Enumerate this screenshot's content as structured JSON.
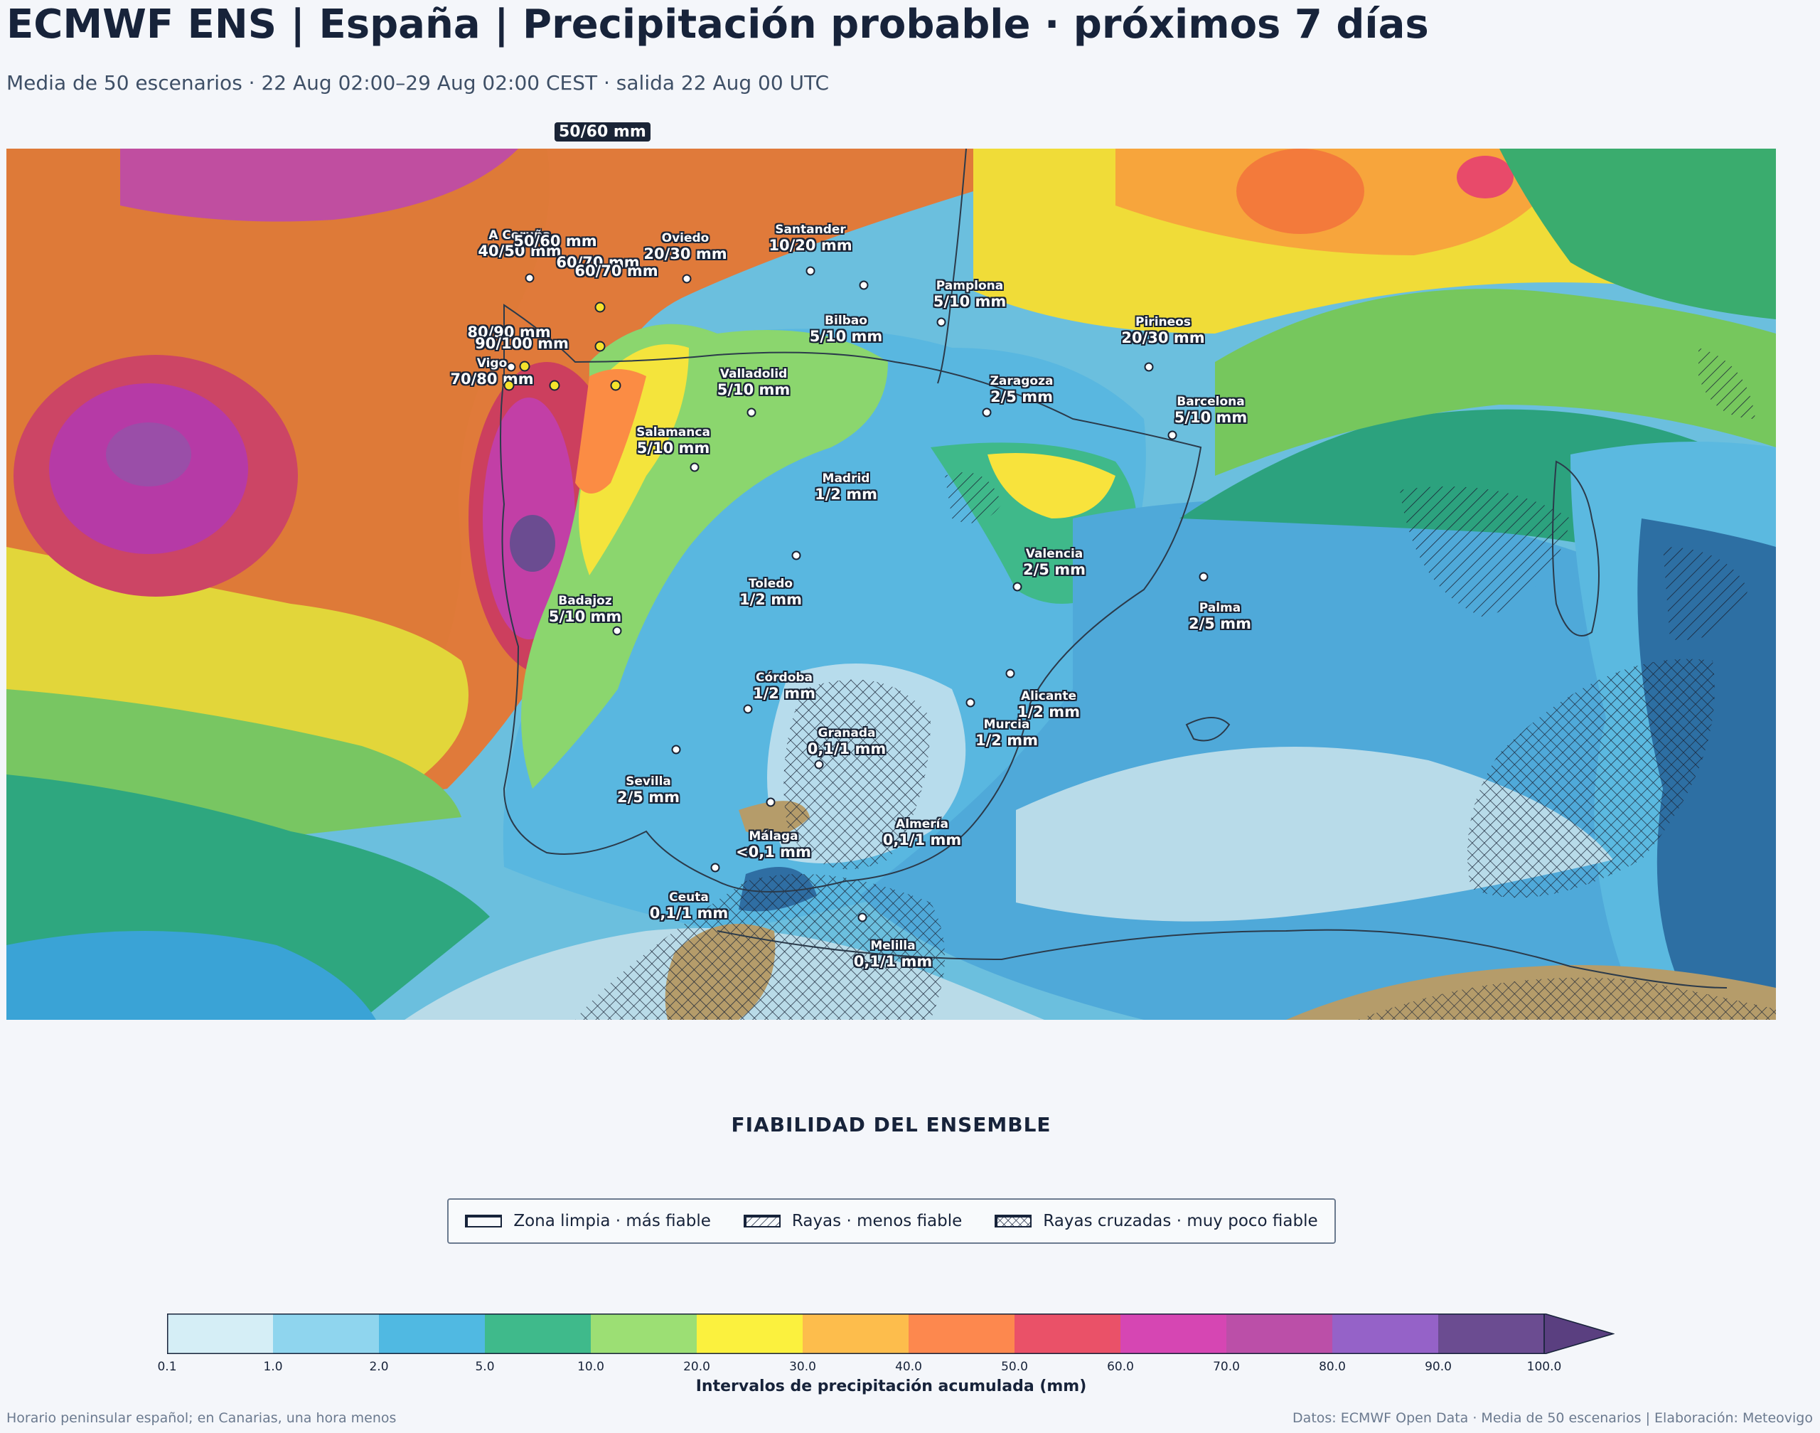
{
  "title": "ECMWF ENS | España | Precipitación probable · próximos 7 días",
  "subtitle": "Media de 50 escenarios · 22 Aug 02:00–29 Aug 02:00 CEST · salida 22 Aug 00 UTC",
  "top_label": "50/60 mm",
  "cities": [
    {
      "name": "A Coruña",
      "value": "40/50 mm"
    },
    {
      "name": "",
      "value": "50/60 mm"
    },
    {
      "name": "",
      "value": "60/70 mm"
    },
    {
      "name": "",
      "value": "60/70 mm"
    },
    {
      "name": "Oviedo",
      "value": "20/30 mm"
    },
    {
      "name": "Santander",
      "value": "10/20 mm"
    },
    {
      "name": "Pamplona",
      "value": "5/10 mm"
    },
    {
      "name": "Bilbao",
      "value": "5/10 mm"
    },
    {
      "name": "Pirineos",
      "value": "20/30 mm"
    },
    {
      "name": "",
      "value": "80/90 mm"
    },
    {
      "name": "",
      "value": "90/100 mm"
    },
    {
      "name": "Vigo",
      "value": "70/80 mm"
    },
    {
      "name": "Valladolid",
      "value": "5/10 mm"
    },
    {
      "name": "Zaragoza",
      "value": "2/5 mm"
    },
    {
      "name": "Barcelona",
      "value": "5/10 mm"
    },
    {
      "name": "Salamanca",
      "value": "5/10 mm"
    },
    {
      "name": "Madrid",
      "value": "1/2 mm"
    },
    {
      "name": "Valencia",
      "value": "2/5 mm"
    },
    {
      "name": "Toledo",
      "value": "1/2 mm"
    },
    {
      "name": "Badajoz",
      "value": "5/10 mm"
    },
    {
      "name": "Palma",
      "value": "2/5 mm"
    },
    {
      "name": "Córdoba",
      "value": "1/2 mm"
    },
    {
      "name": "Alicante",
      "value": "1/2 mm"
    },
    {
      "name": "Granada",
      "value": "0,1/1 mm"
    },
    {
      "name": "Murcia",
      "value": "1/2 mm"
    },
    {
      "name": "Sevilla",
      "value": "2/5 mm"
    },
    {
      "name": "Almería",
      "value": "0,1/1 mm"
    },
    {
      "name": "Málaga",
      "value": "<0,1 mm"
    },
    {
      "name": "Ceuta",
      "value": "0,1/1 mm"
    },
    {
      "name": "Melilla",
      "value": "0,1/1 mm"
    }
  ],
  "reliability": {
    "title": "FIABILIDAD DEL ENSEMBLE",
    "items": [
      {
        "label": "Zona limpia · más fiable",
        "pattern": "none"
      },
      {
        "label": "Rayas · menos fiable",
        "pattern": "hatch"
      },
      {
        "label": "Rayas cruzadas · muy poco fiable",
        "pattern": "crosshatch"
      }
    ]
  },
  "colorbar": {
    "label": "Intervalos de precipitación acumulada (mm)",
    "ticks": [
      "0.1",
      "1.0",
      "2.0",
      "5.0",
      "10.0",
      "20.0",
      "30.0",
      "40.0",
      "50.0",
      "60.0",
      "70.0",
      "80.0",
      "90.0",
      "100.0"
    ],
    "colors": [
      "#d5eef6",
      "#8fd5ee",
      "#50b9e2",
      "#3fba8b",
      "#9cdf74",
      "#fbf13e",
      "#fdbd4c",
      "#fd884e",
      "#ea5168",
      "#d646b3",
      "#bb4fa8",
      "#9562c8",
      "#6b4c91"
    ],
    "extend_color": "#5a3f80"
  },
  "footer": {
    "left": "Horario peninsular español; en Canarias, una hora menos",
    "right": "Datos: ECMWF Open Data · Media de 50 escenarios | Elaboración: Meteovigo"
  }
}
